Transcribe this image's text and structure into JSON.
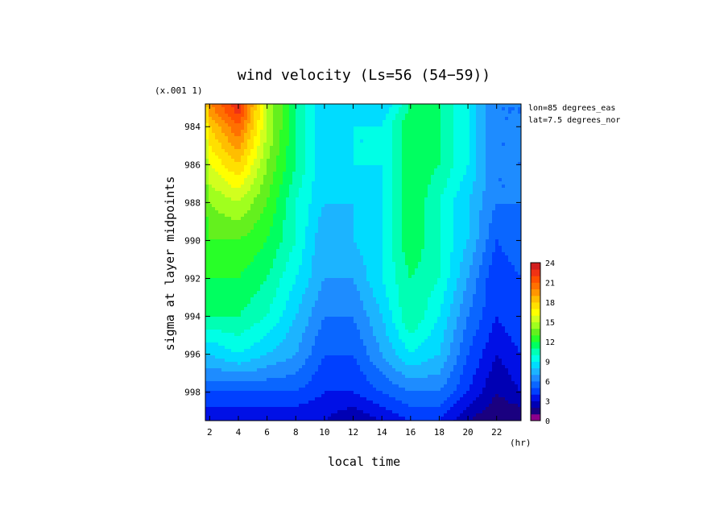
{
  "chart_data": {
    "type": "heatmap",
    "title": "wind velocity (Ls=56 (54−59))",
    "xlabel": "local time",
    "ylabel": "sigma at layer midpoints",
    "x_unit": "(hr)",
    "y_scale_label": "(x.001 1)",
    "annotations": [
      "lon=85 degrees_eas",
      "lat=7.5 degrees_nor"
    ],
    "x_ticks": [
      2,
      4,
      6,
      8,
      10,
      12,
      14,
      16,
      18,
      20,
      22
    ],
    "y_ticks": [
      984,
      986,
      988,
      990,
      992,
      994,
      996,
      998
    ],
    "xlim": [
      1.7,
      23.7
    ],
    "ylim": [
      982.8,
      999.5
    ],
    "x": [
      1.7,
      2,
      4,
      6,
      8,
      10,
      12,
      14,
      16,
      18,
      20,
      22,
      23.7
    ],
    "y": [
      982.8,
      984,
      986,
      988,
      990,
      992,
      994,
      996,
      998,
      999.5
    ],
    "z": [
      [
        17,
        20,
        23,
        15,
        11,
        8,
        9,
        8,
        11,
        11,
        9,
        6,
        6
      ],
      [
        16,
        18,
        21,
        15,
        11,
        8,
        9,
        9,
        12,
        11,
        9,
        6,
        6
      ],
      [
        14,
        16,
        18,
        14,
        11,
        8,
        9,
        9,
        12,
        11,
        9,
        6,
        6
      ],
      [
        13,
        14,
        15,
        13,
        10,
        8,
        8,
        9,
        12,
        10,
        8,
        6,
        6
      ],
      [
        12,
        13,
        13,
        12,
        10,
        7,
        8,
        9,
        12,
        10,
        8,
        5,
        6
      ],
      [
        12,
        12,
        12,
        11,
        9,
        7,
        7,
        9,
        11,
        10,
        7,
        4,
        5
      ],
      [
        11,
        11,
        11,
        10,
        8,
        6,
        6,
        8,
        11,
        9,
        6,
        4,
        5
      ],
      [
        8,
        8,
        9,
        8,
        7,
        5,
        5,
        7,
        9,
        8,
        5,
        3,
        4
      ],
      [
        5,
        5,
        5,
        5,
        5,
        4,
        4,
        5,
        6,
        6,
        4,
        2,
        3
      ],
      [
        3,
        3,
        3,
        3,
        3,
        3,
        2,
        3,
        4,
        4,
        2,
        1,
        1
      ]
    ],
    "colorbar": {
      "levels": [
        0,
        1,
        2,
        3,
        4,
        5,
        6,
        7,
        8,
        9,
        10,
        11,
        12,
        13,
        14,
        15,
        16,
        17,
        18,
        19,
        20,
        21,
        22,
        23,
        24
      ],
      "tick_labels": [
        0,
        3,
        6,
        9,
        12,
        15,
        18,
        21,
        24
      ],
      "colors": [
        "#8c008c",
        "#1a0080",
        "#0000b4",
        "#0010e6",
        "#0040ff",
        "#0a66ff",
        "#1e8cff",
        "#1cb4ff",
        "#00dcff",
        "#00ffe6",
        "#00ffb4",
        "#00ff60",
        "#28ff28",
        "#64f01e",
        "#a0ff1e",
        "#d2ff1e",
        "#ffff00",
        "#ffe000",
        "#ffbe00",
        "#ff9600",
        "#ff7000",
        "#ff5000",
        "#f03214",
        "#d21e1e"
      ]
    },
    "grid": false
  }
}
